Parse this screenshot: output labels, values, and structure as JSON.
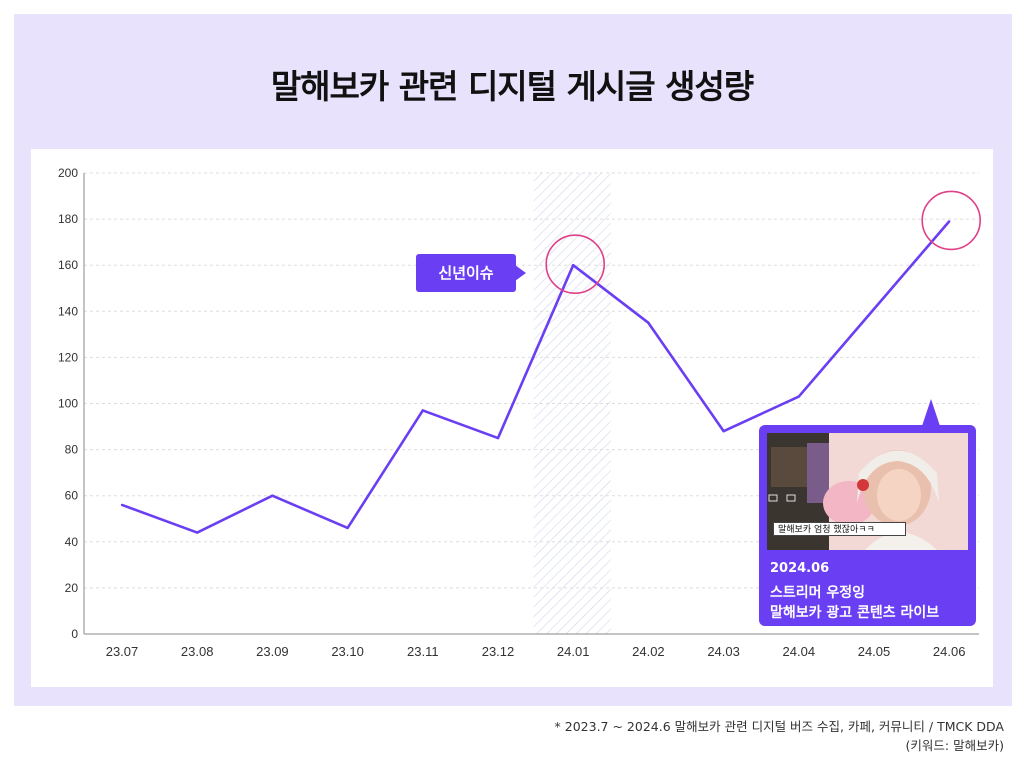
{
  "title": "말해보카 관련 디지털 게시글 생성량",
  "colors": {
    "line": "#6a3ef2",
    "highlight_circle": "#e0408a",
    "panel_bg": "#e8e2fd",
    "callout_bg": "#6a3ef2"
  },
  "chart_data": {
    "type": "line",
    "categories": [
      "23.07",
      "23.08",
      "23.09",
      "23.10",
      "23.11",
      "23.12",
      "24.01",
      "24.02",
      "24.03",
      "24.04",
      "24.05",
      "24.06"
    ],
    "series": [
      {
        "values": [
          56,
          44,
          60,
          46,
          97,
          85,
          160,
          135,
          88,
          103,
          141,
          179
        ]
      }
    ],
    "ylim": [
      0,
      200
    ],
    "yticks": [
      0,
      20,
      40,
      60,
      80,
      100,
      120,
      140,
      160,
      180,
      200
    ],
    "grid": "horizontal dashed",
    "shaded_range": [
      "23.12",
      "24.01"
    ],
    "highlighted_points": [
      "24.01",
      "24.06"
    ]
  },
  "annotations": {
    "peak_label": "신년이슈",
    "callout": {
      "image_caption": "말해보카 엄청 했잖아ㅋㅋ",
      "date": "2024.06",
      "line1": "스트리머 우정잉",
      "line2": "말해보카 광고 콘텐츠 라이브"
    }
  },
  "source": {
    "line1": "* 2023.7 ~ 2024.6 말해보카 관련 디지털 버즈 수집, 카페, 커뮤니티 / TMCK DDA",
    "line2": "(키워드: 말해보카)"
  }
}
